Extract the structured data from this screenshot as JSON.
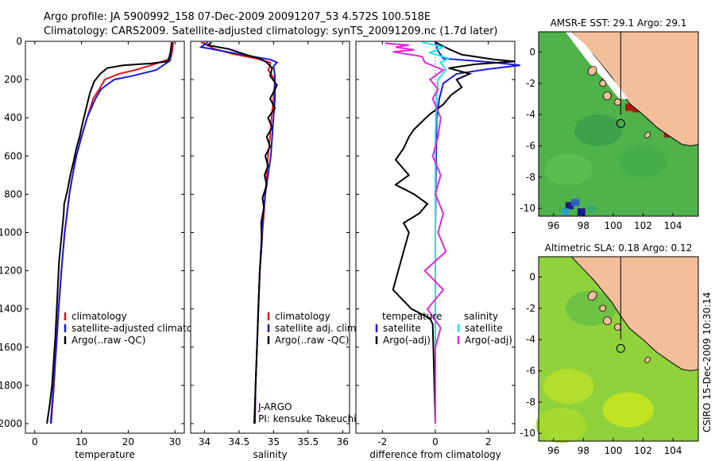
{
  "header": {
    "line1": "Argo profile: JA 5900992_158 07-Dec-2009 20091207_53 4.572S 100.518E",
    "line2": "Climatology: CARS2009. Satellite-adjusted climatology: synTS_20091209.nc (1.7d later)"
  },
  "colors": {
    "clim": "#e8141a",
    "sat": "#1a1adc",
    "argo": "#000000",
    "sat_cyan": "#22e0e8",
    "argo_mag": "#e028d8",
    "land": "#f3bf9b",
    "sea": "#44b04a"
  },
  "chart_data": [
    {
      "type": "line",
      "id": "temperature",
      "xlabel": "temperature",
      "ylim": [
        0,
        2050
      ],
      "xlim": [
        -2,
        32
      ],
      "xticks": [
        0,
        10,
        20,
        30
      ],
      "yticks": [
        0,
        200,
        400,
        600,
        800,
        1000,
        1200,
        1400,
        1600,
        1800,
        2000
      ],
      "legend": [
        "climatology",
        "satellite-adjusted climatology",
        "Argo(..raw -QC)"
      ],
      "series": [
        {
          "name": "climatology",
          "color": "clim",
          "points": [
            [
              29.6,
              5
            ],
            [
              29.5,
              40
            ],
            [
              29.2,
              80
            ],
            [
              28.5,
              95
            ],
            [
              25.5,
              120
            ],
            [
              21.5,
              150
            ],
            [
              18,
              170
            ],
            [
              15,
              200
            ],
            [
              13.8,
              250
            ],
            [
              12.5,
              300
            ],
            [
              11.2,
              400
            ],
            [
              10,
              500
            ],
            [
              8.9,
              600
            ],
            [
              8.1,
              700
            ],
            [
              7.4,
              800
            ],
            [
              6.9,
              900
            ],
            [
              6.4,
              1000
            ],
            [
              5.7,
              1200
            ],
            [
              5.1,
              1400
            ],
            [
              4.6,
              1600
            ],
            [
              4.1,
              1800
            ],
            [
              3.5,
              2000
            ]
          ]
        },
        {
          "name": "satellite-adjusted climatology",
          "color": "sat",
          "points": [
            [
              29.3,
              5
            ],
            [
              29.2,
              40
            ],
            [
              29.0,
              100
            ],
            [
              26,
              150
            ],
            [
              21,
              180
            ],
            [
              17,
              200
            ],
            [
              14.2,
              250
            ],
            [
              13,
              300
            ],
            [
              11.2,
              400
            ],
            [
              10,
              500
            ],
            [
              8.9,
              600
            ],
            [
              8.1,
              700
            ],
            [
              7.4,
              800
            ],
            [
              6.9,
              900
            ],
            [
              6.4,
              1000
            ],
            [
              5.7,
              1200
            ],
            [
              5.1,
              1400
            ],
            [
              4.6,
              1600
            ],
            [
              4.0,
              1800
            ],
            [
              3.4,
              2000
            ]
          ]
        },
        {
          "name": "Argo(..raw -QC)",
          "color": "argo",
          "points": [
            [
              29.3,
              5
            ],
            [
              29.2,
              30
            ],
            [
              29.0,
              60
            ],
            [
              28.8,
              80
            ],
            [
              28.5,
              105
            ],
            [
              25,
              115
            ],
            [
              19,
              125
            ],
            [
              15.5,
              140
            ],
            [
              14,
              170
            ],
            [
              12.7,
              210
            ],
            [
              11.8,
              270
            ],
            [
              11,
              350
            ],
            [
              10.2,
              430
            ],
            [
              9.6,
              500
            ],
            [
              8.9,
              560
            ],
            [
              8.2,
              640
            ],
            [
              7.6,
              700
            ],
            [
              7.0,
              780
            ],
            [
              6.6,
              820
            ],
            [
              6.3,
              850
            ],
            [
              6.2,
              900
            ],
            [
              6.0,
              950
            ],
            [
              5.6,
              1050
            ],
            [
              5.2,
              1150
            ],
            [
              5.0,
              1250
            ],
            [
              4.8,
              1350
            ],
            [
              4.6,
              1450
            ],
            [
              4.4,
              1550
            ],
            [
              4.1,
              1650
            ],
            [
              3.7,
              1800
            ],
            [
              3.2,
              1900
            ],
            [
              2.6,
              2000
            ]
          ]
        }
      ]
    },
    {
      "type": "line",
      "id": "salinity",
      "xlabel": "salinity",
      "ylim": [
        0,
        2050
      ],
      "xlim": [
        33.8,
        36.1
      ],
      "xticks": [
        34,
        34.5,
        35,
        35.5,
        36
      ],
      "legend": [
        "climatology",
        "satellite adj. clim.",
        "Argo(..raw -QC)"
      ],
      "annotations": [
        "J-ARGO",
        "PI: kensuke Takeuchi"
      ],
      "series": [
        {
          "name": "climatology",
          "color": "clim",
          "points": [
            [
              33.95,
              5
            ],
            [
              34.15,
              40
            ],
            [
              34.4,
              65
            ],
            [
              34.75,
              90
            ],
            [
              34.95,
              110
            ],
            [
              34.95,
              130
            ],
            [
              34.92,
              150
            ],
            [
              35.02,
              200
            ],
            [
              35.0,
              300
            ],
            [
              34.97,
              400
            ],
            [
              34.95,
              500
            ],
            [
              34.92,
              600
            ],
            [
              34.9,
              700
            ],
            [
              34.88,
              800
            ],
            [
              34.86,
              900
            ],
            [
              34.84,
              1000
            ],
            [
              34.8,
              1200
            ],
            [
              34.78,
              1400
            ],
            [
              34.76,
              1600
            ],
            [
              34.74,
              1800
            ],
            [
              34.73,
              2000
            ]
          ]
        },
        {
          "name": "satellite adj. clim.",
          "color": "sat",
          "points": [
            [
              34.05,
              5
            ],
            [
              33.95,
              30
            ],
            [
              34.25,
              50
            ],
            [
              34.7,
              80
            ],
            [
              34.95,
              95
            ],
            [
              35.05,
              110
            ],
            [
              35.0,
              130
            ],
            [
              35.02,
              180
            ],
            [
              35.02,
              300
            ],
            [
              35.0,
              400
            ],
            [
              34.98,
              500
            ],
            [
              34.96,
              600
            ],
            [
              34.92,
              700
            ],
            [
              34.88,
              800
            ],
            [
              34.85,
              900
            ],
            [
              34.83,
              1000
            ],
            [
              34.8,
              1200
            ],
            [
              34.78,
              1400
            ],
            [
              34.76,
              1600
            ],
            [
              34.74,
              1800
            ],
            [
              34.73,
              2000
            ]
          ]
        },
        {
          "name": "Argo(..raw -QC)",
          "color": "argo",
          "points": [
            [
              34.1,
              5
            ],
            [
              34.05,
              20
            ],
            [
              34.35,
              40
            ],
            [
              34.6,
              70
            ],
            [
              34.8,
              90
            ],
            [
              34.9,
              110
            ],
            [
              34.98,
              140
            ],
            [
              34.95,
              180
            ],
            [
              35.05,
              230
            ],
            [
              34.95,
              300
            ],
            [
              35.02,
              350
            ],
            [
              34.92,
              400
            ],
            [
              34.98,
              450
            ],
            [
              34.9,
              500
            ],
            [
              34.95,
              550
            ],
            [
              34.88,
              600
            ],
            [
              34.92,
              650
            ],
            [
              34.87,
              700
            ],
            [
              34.9,
              750
            ],
            [
              34.84,
              820
            ],
            [
              34.86,
              870
            ],
            [
              34.82,
              950
            ],
            [
              34.83,
              1050
            ],
            [
              34.8,
              1200
            ],
            [
              34.78,
              1400
            ],
            [
              34.76,
              1600
            ],
            [
              34.74,
              1800
            ],
            [
              34.72,
              2000
            ]
          ]
        }
      ]
    },
    {
      "type": "line",
      "id": "difference",
      "xlabel": "difference from climatology",
      "ylim": [
        0,
        2050
      ],
      "xlim": [
        -3,
        3
      ],
      "xticks": [
        -2,
        0,
        2
      ],
      "legend": [
        "temperature",
        "satellite",
        "Argo(-adj)",
        "salinity",
        "satellite",
        "Argo(-adj)"
      ],
      "series": [
        {
          "name": "temperature satellite",
          "color": "sat",
          "points": [
            [
              0.0,
              5
            ],
            [
              0.1,
              50
            ],
            [
              0.3,
              90
            ],
            [
              2.2,
              110
            ],
            [
              3.2,
              125
            ],
            [
              2.0,
              145
            ],
            [
              0.8,
              170
            ],
            [
              0.3,
              220
            ],
            [
              0.15,
              300
            ],
            [
              0.05,
              400
            ],
            [
              0.02,
              700
            ],
            [
              0.0,
              1000
            ],
            [
              0.0,
              2000
            ]
          ]
        },
        {
          "name": "temperature Argo(-adj)",
          "color": "argo",
          "points": [
            [
              0.0,
              5
            ],
            [
              0.5,
              40
            ],
            [
              1.0,
              70
            ],
            [
              2.2,
              95
            ],
            [
              3.0,
              105
            ],
            [
              1.5,
              120
            ],
            [
              0.5,
              140
            ],
            [
              1.3,
              170
            ],
            [
              0.8,
              200
            ],
            [
              1.0,
              240
            ],
            [
              0.6,
              280
            ],
            [
              0.3,
              330
            ],
            [
              -0.2,
              380
            ],
            [
              -0.5,
              420
            ],
            [
              -0.8,
              460
            ],
            [
              -1.0,
              500
            ],
            [
              -1.2,
              560
            ],
            [
              -1.5,
              620
            ],
            [
              -1.0,
              700
            ],
            [
              -1.5,
              750
            ],
            [
              -0.8,
              800
            ],
            [
              -0.3,
              850
            ],
            [
              -0.6,
              900
            ],
            [
              -1.2,
              950
            ],
            [
              -1.0,
              1000
            ],
            [
              -1.2,
              1100
            ],
            [
              -1.4,
              1200
            ],
            [
              -1.6,
              1300
            ],
            [
              -0.9,
              1400
            ],
            [
              -0.2,
              1450
            ],
            [
              -0.1,
              1480
            ],
            [
              0.0,
              2000
            ]
          ]
        },
        {
          "name": "salinity satellite",
          "color": "sat_cyan",
          "points": [
            [
              -0.5,
              5
            ],
            [
              0.3,
              30
            ],
            [
              -0.2,
              60
            ],
            [
              0.5,
              90
            ],
            [
              0.2,
              110
            ],
            [
              0.4,
              150
            ],
            [
              0.1,
              200
            ],
            [
              0.05,
              300
            ],
            [
              0.0,
              500
            ],
            [
              0.0,
              1000
            ],
            [
              0.0,
              2000
            ]
          ]
        },
        {
          "name": "salinity Argo(-adj)",
          "color": "argo_mag",
          "points": [
            [
              -1.9,
              10
            ],
            [
              -1.0,
              20
            ],
            [
              -1.5,
              30
            ],
            [
              -0.8,
              45
            ],
            [
              -1.6,
              55
            ],
            [
              -0.5,
              80
            ],
            [
              -0.4,
              110
            ],
            [
              0.3,
              150
            ],
            [
              -0.2,
              200
            ],
            [
              0.1,
              250
            ],
            [
              -0.1,
              300
            ],
            [
              0.2,
              400
            ],
            [
              0.1,
              500
            ],
            [
              -0.1,
              600
            ],
            [
              0.2,
              700
            ],
            [
              0.0,
              800
            ],
            [
              0.3,
              900
            ],
            [
              0.1,
              1000
            ],
            [
              0.4,
              1100
            ],
            [
              -0.4,
              1200
            ],
            [
              0.3,
              1300
            ],
            [
              -0.3,
              1400
            ],
            [
              0.2,
              1500
            ],
            [
              0.0,
              1600
            ],
            [
              0.0,
              2000
            ]
          ]
        }
      ]
    }
  ],
  "maps": [
    {
      "title": "AMSR-E SST: 29.1 Argo: 29.1",
      "xticks": [
        96,
        98,
        100,
        102,
        104
      ],
      "yticks": [
        0,
        -2,
        -4,
        -6,
        -8,
        -10
      ],
      "xlim": [
        95,
        105.7
      ],
      "ylim": [
        -10.5,
        1.3
      ],
      "float": [
        100.5,
        -4.57
      ]
    },
    {
      "title": "Altimetric SLA: 0.18 Argo: 0.12",
      "xticks": [
        96,
        98,
        100,
        102,
        104
      ],
      "yticks": [
        0,
        -2,
        -4,
        -6,
        -8,
        -10
      ],
      "xlim": [
        95,
        105.7
      ],
      "ylim": [
        -10.5,
        1.3
      ],
      "float": [
        100.5,
        -4.57
      ]
    }
  ],
  "stamp": "CSIRO 15-Dec-2009 10:30:14"
}
